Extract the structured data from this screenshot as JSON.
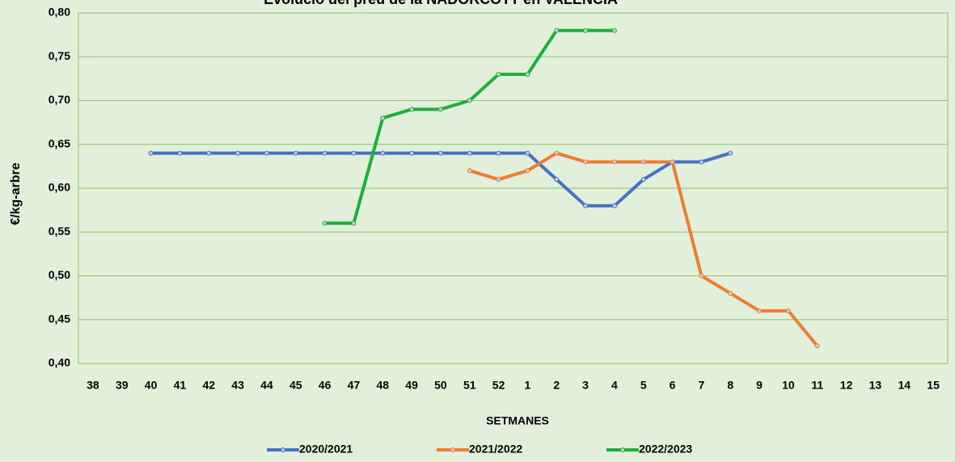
{
  "chart_data": {
    "type": "line",
    "title": "Evolució del preu de la NADORCOTT en VALÈNCIA",
    "x_label": "SETMANES",
    "y_label": "€/kg-arbre",
    "categories": [
      "38",
      "39",
      "40",
      "41",
      "42",
      "43",
      "44",
      "45",
      "46",
      "47",
      "48",
      "49",
      "50",
      "51",
      "52",
      "1",
      "2",
      "3",
      "4",
      "5",
      "6",
      "7",
      "8",
      "9",
      "10",
      "11",
      "12",
      "13",
      "14",
      "15"
    ],
    "series": [
      {
        "name": "2020/2021",
        "color": "#4472c4",
        "values": [
          null,
          null,
          0.64,
          0.64,
          0.64,
          0.64,
          0.64,
          0.64,
          0.64,
          0.64,
          0.64,
          0.64,
          0.64,
          0.64,
          0.64,
          0.64,
          0.61,
          0.58,
          0.58,
          0.61,
          0.63,
          0.63,
          0.64,
          null,
          null,
          null,
          null,
          null,
          null,
          null
        ]
      },
      {
        "name": "2021/2022",
        "color": "#ed7d31",
        "values": [
          null,
          null,
          null,
          null,
          null,
          null,
          null,
          null,
          null,
          null,
          null,
          null,
          null,
          0.62,
          0.61,
          0.62,
          0.64,
          0.63,
          0.63,
          0.63,
          0.63,
          0.5,
          0.48,
          0.46,
          0.46,
          0.42,
          null,
          null,
          null,
          null
        ]
      },
      {
        "name": "2022/2023",
        "color": "#1fae3e",
        "values": [
          null,
          null,
          null,
          null,
          null,
          null,
          null,
          null,
          0.56,
          0.56,
          0.68,
          0.69,
          0.69,
          0.7,
          0.73,
          0.73,
          0.78,
          0.78,
          0.78,
          null,
          null,
          null,
          null,
          null,
          null,
          null,
          null,
          null,
          null,
          null
        ]
      }
    ],
    "ylim": [
      0.4,
      0.8
    ],
    "yticks": [
      {
        "value": 0.4,
        "label": "0,40"
      },
      {
        "value": 0.45,
        "label": "0,45"
      },
      {
        "value": 0.5,
        "label": "0,50"
      },
      {
        "value": 0.55,
        "label": "0,55"
      },
      {
        "value": 0.6,
        "label": "0,60"
      },
      {
        "value": 0.65,
        "label": "0,65"
      },
      {
        "value": 0.7,
        "label": "0,70"
      },
      {
        "value": 0.75,
        "label": "0,75"
      },
      {
        "value": 0.8,
        "label": "0,80"
      }
    ],
    "grid": true,
    "legend": "bottom"
  }
}
